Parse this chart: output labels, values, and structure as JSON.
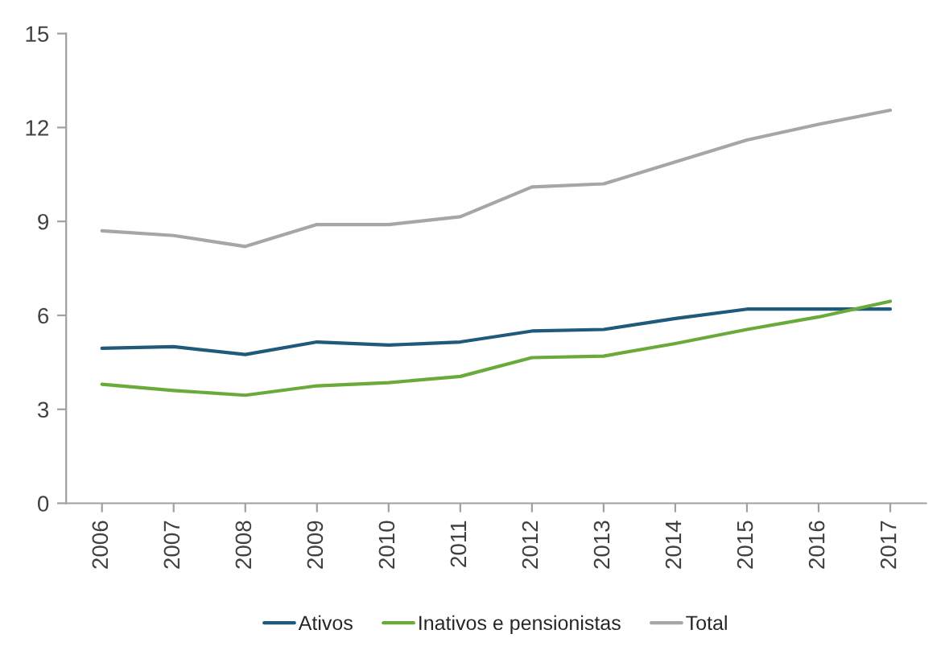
{
  "chart_data": {
    "type": "line",
    "categories": [
      "2006",
      "2007",
      "2008",
      "2009",
      "2010",
      "2011",
      "2012",
      "2013",
      "2014",
      "2015",
      "2016",
      "2017"
    ],
    "series": [
      {
        "name": "Ativos",
        "color": "#1f5a7a",
        "values": [
          4.95,
          5.0,
          4.75,
          5.15,
          5.05,
          5.15,
          5.5,
          5.55,
          5.9,
          6.2,
          6.2,
          6.2
        ]
      },
      {
        "name": "Inativos e pensionistas",
        "color": "#6aaa3a",
        "values": [
          3.8,
          3.6,
          3.45,
          3.75,
          3.85,
          4.05,
          4.65,
          4.7,
          5.1,
          5.55,
          5.95,
          6.45
        ]
      },
      {
        "name": "Total",
        "color": "#a6a6a6",
        "values": [
          8.7,
          8.55,
          8.2,
          8.9,
          8.9,
          9.15,
          10.1,
          10.2,
          10.9,
          11.6,
          12.1,
          12.55
        ]
      }
    ],
    "ylim": [
      0,
      15
    ],
    "yticks": [
      0,
      3,
      6,
      9,
      12,
      15
    ],
    "grid": false,
    "legend": "bottom"
  }
}
